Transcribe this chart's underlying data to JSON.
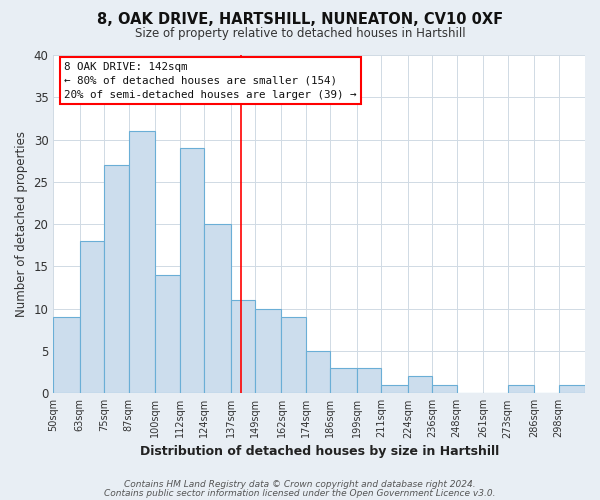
{
  "title_line1": "8, OAK DRIVE, HARTSHILL, NUNEATON, CV10 0XF",
  "title_line2": "Size of property relative to detached houses in Hartshill",
  "xlabel": "Distribution of detached houses by size in Hartshill",
  "ylabel": "Number of detached properties",
  "bin_labels": [
    "50sqm",
    "63sqm",
    "75sqm",
    "87sqm",
    "100sqm",
    "112sqm",
    "124sqm",
    "137sqm",
    "149sqm",
    "162sqm",
    "174sqm",
    "186sqm",
    "199sqm",
    "211sqm",
    "224sqm",
    "236sqm",
    "248sqm",
    "261sqm",
    "273sqm",
    "286sqm",
    "298sqm"
  ],
  "bin_edges": [
    50,
    63,
    75,
    87,
    100,
    112,
    124,
    137,
    149,
    162,
    174,
    186,
    199,
    211,
    224,
    236,
    248,
    261,
    273,
    286,
    298,
    311
  ],
  "bar_heights": [
    9,
    18,
    27,
    31,
    14,
    29,
    20,
    11,
    10,
    9,
    5,
    3,
    3,
    1,
    2,
    1,
    0,
    0,
    1,
    0,
    1
  ],
  "bar_color": "#ccdded",
  "bar_edge_color": "#6aaed6",
  "ylim": [
    0,
    40
  ],
  "yticks": [
    0,
    5,
    10,
    15,
    20,
    25,
    30,
    35,
    40
  ],
  "property_line_x": 142,
  "annotation_line1": "8 OAK DRIVE: 142sqm",
  "annotation_line2": "← 80% of detached houses are smaller (154)",
  "annotation_line3": "20% of semi-detached houses are larger (39) →",
  "footer_line1": "Contains HM Land Registry data © Crown copyright and database right 2024.",
  "footer_line2": "Contains public sector information licensed under the Open Government Licence v3.0.",
  "background_color": "#e8eef4",
  "plot_bg_color": "#ffffff",
  "grid_color": "#d0dae4"
}
